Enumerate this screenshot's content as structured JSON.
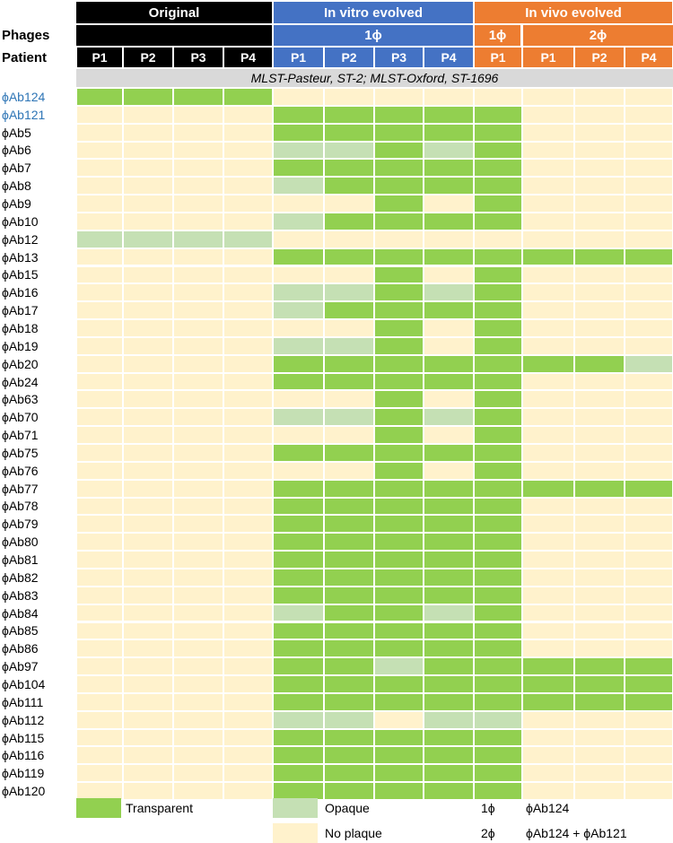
{
  "chart_data": {
    "type": "heatmap",
    "header": {
      "phages_label": "Phages",
      "patient_label": "Patient",
      "groups": [
        {
          "label": "Original",
          "color": "#000000"
        },
        {
          "label": "In vitro evolved",
          "color": "#4472c4",
          "subgroup": "1ϕ"
        },
        {
          "label": "In vivo evolved",
          "color": "#ed7d31",
          "subgroups": [
            "1ϕ",
            "2ϕ"
          ]
        }
      ],
      "columns": [
        {
          "group": "Original",
          "label": "P1"
        },
        {
          "group": "Original",
          "label": "P2"
        },
        {
          "group": "Original",
          "label": "P3"
        },
        {
          "group": "Original",
          "label": "P4"
        },
        {
          "group": "In vitro evolved",
          "sub": "1ϕ",
          "label": "P1"
        },
        {
          "group": "In vitro evolved",
          "sub": "1ϕ",
          "label": "P2"
        },
        {
          "group": "In vitro evolved",
          "sub": "1ϕ",
          "label": "P3"
        },
        {
          "group": "In vitro evolved",
          "sub": "1ϕ",
          "label": "P4"
        },
        {
          "group": "In vivo evolved",
          "sub": "1ϕ",
          "label": "P1"
        },
        {
          "group": "In vivo evolved",
          "sub": "2ϕ",
          "label": "P1"
        },
        {
          "group": "In vivo evolved",
          "sub": "2ϕ",
          "label": "P2"
        },
        {
          "group": "In vivo evolved",
          "sub": "2ϕ",
          "label": "P4"
        }
      ]
    },
    "strain_label": "MLST-Pasteur, ST-2;  MLST-Oxford, ST-1696",
    "categories": {
      "T": {
        "label": "Transparent",
        "color": "#92d050"
      },
      "O": {
        "label": "Opaque",
        "color": "#c5e0b4"
      },
      "N": {
        "label": "No plaque",
        "color": "#fff2cc"
      }
    },
    "rows": [
      {
        "phage": "ϕAb124",
        "highlight": "#2e75b6",
        "values": [
          "T",
          "T",
          "T",
          "T",
          "N",
          "N",
          "N",
          "N",
          "N",
          "N",
          "N",
          "N"
        ]
      },
      {
        "phage": "ϕAb121",
        "highlight": "#2e75b6",
        "values": [
          "N",
          "N",
          "N",
          "N",
          "T",
          "T",
          "T",
          "T",
          "T",
          "N",
          "N",
          "N"
        ]
      },
      {
        "phage": "ϕAb5",
        "values": [
          "N",
          "N",
          "N",
          "N",
          "T",
          "T",
          "T",
          "T",
          "T",
          "N",
          "N",
          "N"
        ]
      },
      {
        "phage": "ϕAb6",
        "values": [
          "N",
          "N",
          "N",
          "N",
          "O",
          "O",
          "T",
          "O",
          "T",
          "N",
          "N",
          "N"
        ]
      },
      {
        "phage": "ϕAb7",
        "values": [
          "N",
          "N",
          "N",
          "N",
          "T",
          "T",
          "T",
          "T",
          "T",
          "N",
          "N",
          "N"
        ]
      },
      {
        "phage": "ϕAb8",
        "values": [
          "N",
          "N",
          "N",
          "N",
          "O",
          "T",
          "T",
          "T",
          "T",
          "N",
          "N",
          "N"
        ]
      },
      {
        "phage": "ϕAb9",
        "values": [
          "N",
          "N",
          "N",
          "N",
          "N",
          "N",
          "T",
          "N",
          "T",
          "N",
          "N",
          "N"
        ]
      },
      {
        "phage": "ϕAb10",
        "values": [
          "N",
          "N",
          "N",
          "N",
          "O",
          "T",
          "T",
          "T",
          "T",
          "N",
          "N",
          "N"
        ]
      },
      {
        "phage": "ϕAb12",
        "values": [
          "O",
          "O",
          "O",
          "O",
          "N",
          "N",
          "N",
          "N",
          "N",
          "N",
          "N",
          "N"
        ]
      },
      {
        "phage": "ϕAb13",
        "values": [
          "N",
          "N",
          "N",
          "N",
          "T",
          "T",
          "T",
          "T",
          "T",
          "T",
          "T",
          "T"
        ]
      },
      {
        "phage": "ϕAb15",
        "values": [
          "N",
          "N",
          "N",
          "N",
          "N",
          "N",
          "T",
          "N",
          "T",
          "N",
          "N",
          "N"
        ]
      },
      {
        "phage": "ϕAb16",
        "values": [
          "N",
          "N",
          "N",
          "N",
          "O",
          "O",
          "T",
          "O",
          "T",
          "N",
          "N",
          "N"
        ]
      },
      {
        "phage": "ϕAb17",
        "values": [
          "N",
          "N",
          "N",
          "N",
          "O",
          "T",
          "T",
          "T",
          "T",
          "N",
          "N",
          "N"
        ]
      },
      {
        "phage": "ϕAb18",
        "values": [
          "N",
          "N",
          "N",
          "N",
          "N",
          "N",
          "T",
          "N",
          "T",
          "N",
          "N",
          "N"
        ]
      },
      {
        "phage": "ϕAb19",
        "values": [
          "N",
          "N",
          "N",
          "N",
          "O",
          "O",
          "T",
          "N",
          "T",
          "N",
          "N",
          "N"
        ]
      },
      {
        "phage": "ϕAb20",
        "values": [
          "N",
          "N",
          "N",
          "N",
          "T",
          "T",
          "T",
          "T",
          "T",
          "T",
          "T",
          "O"
        ]
      },
      {
        "phage": "ϕAb24",
        "values": [
          "N",
          "N",
          "N",
          "N",
          "T",
          "T",
          "T",
          "T",
          "T",
          "N",
          "N",
          "N"
        ]
      },
      {
        "phage": "ϕAb63",
        "values": [
          "N",
          "N",
          "N",
          "N",
          "N",
          "N",
          "T",
          "N",
          "T",
          "N",
          "N",
          "N"
        ]
      },
      {
        "phage": "ϕAb70",
        "values": [
          "N",
          "N",
          "N",
          "N",
          "O",
          "O",
          "T",
          "O",
          "T",
          "N",
          "N",
          "N"
        ]
      },
      {
        "phage": "ϕAb71",
        "values": [
          "N",
          "N",
          "N",
          "N",
          "N",
          "N",
          "T",
          "N",
          "T",
          "N",
          "N",
          "N"
        ]
      },
      {
        "phage": "ϕAb75",
        "values": [
          "N",
          "N",
          "N",
          "N",
          "T",
          "T",
          "T",
          "T",
          "T",
          "N",
          "N",
          "N"
        ]
      },
      {
        "phage": "ϕAb76",
        "values": [
          "N",
          "N",
          "N",
          "N",
          "N",
          "N",
          "T",
          "N",
          "T",
          "N",
          "N",
          "N"
        ]
      },
      {
        "phage": "ϕAb77",
        "values": [
          "N",
          "N",
          "N",
          "N",
          "T",
          "T",
          "T",
          "T",
          "T",
          "T",
          "T",
          "T"
        ]
      },
      {
        "phage": "ϕAb78",
        "values": [
          "N",
          "N",
          "N",
          "N",
          "T",
          "T",
          "T",
          "T",
          "T",
          "N",
          "N",
          "N"
        ]
      },
      {
        "phage": "ϕAb79",
        "values": [
          "N",
          "N",
          "N",
          "N",
          "T",
          "T",
          "T",
          "T",
          "T",
          "N",
          "N",
          "N"
        ]
      },
      {
        "phage": "ϕAb80",
        "values": [
          "N",
          "N",
          "N",
          "N",
          "T",
          "T",
          "T",
          "T",
          "T",
          "N",
          "N",
          "N"
        ]
      },
      {
        "phage": "ϕAb81",
        "values": [
          "N",
          "N",
          "N",
          "N",
          "T",
          "T",
          "T",
          "T",
          "T",
          "N",
          "N",
          "N"
        ]
      },
      {
        "phage": "ϕAb82",
        "values": [
          "N",
          "N",
          "N",
          "N",
          "T",
          "T",
          "T",
          "T",
          "T",
          "N",
          "N",
          "N"
        ]
      },
      {
        "phage": "ϕAb83",
        "values": [
          "N",
          "N",
          "N",
          "N",
          "T",
          "T",
          "T",
          "T",
          "T",
          "N",
          "N",
          "N"
        ]
      },
      {
        "phage": "ϕAb84",
        "values": [
          "N",
          "N",
          "N",
          "N",
          "O",
          "T",
          "T",
          "O",
          "T",
          "N",
          "N",
          "N"
        ]
      },
      {
        "phage": "ϕAb85",
        "values": [
          "N",
          "N",
          "N",
          "N",
          "T",
          "T",
          "T",
          "T",
          "T",
          "N",
          "N",
          "N"
        ]
      },
      {
        "phage": "ϕAb86",
        "values": [
          "N",
          "N",
          "N",
          "N",
          "T",
          "T",
          "T",
          "T",
          "T",
          "N",
          "N",
          "N"
        ]
      },
      {
        "phage": "ϕAb97",
        "values": [
          "N",
          "N",
          "N",
          "N",
          "T",
          "T",
          "O",
          "T",
          "T",
          "T",
          "T",
          "T"
        ]
      },
      {
        "phage": "ϕAb104",
        "values": [
          "N",
          "N",
          "N",
          "N",
          "T",
          "T",
          "T",
          "T",
          "T",
          "T",
          "T",
          "T"
        ]
      },
      {
        "phage": "ϕAb111",
        "values": [
          "N",
          "N",
          "N",
          "N",
          "T",
          "T",
          "T",
          "T",
          "T",
          "T",
          "T",
          "T"
        ]
      },
      {
        "phage": "ϕAb112",
        "values": [
          "N",
          "N",
          "N",
          "N",
          "O",
          "O",
          "N",
          "O",
          "O",
          "N",
          "N",
          "N"
        ]
      },
      {
        "phage": "ϕAb115",
        "values": [
          "N",
          "N",
          "N",
          "N",
          "T",
          "T",
          "T",
          "T",
          "T",
          "N",
          "N",
          "N"
        ]
      },
      {
        "phage": "ϕAb116",
        "values": [
          "N",
          "N",
          "N",
          "N",
          "T",
          "T",
          "T",
          "T",
          "T",
          "N",
          "N",
          "N"
        ]
      },
      {
        "phage": "ϕAb119",
        "values": [
          "N",
          "N",
          "N",
          "N",
          "T",
          "T",
          "T",
          "T",
          "T",
          "N",
          "N",
          "N"
        ]
      },
      {
        "phage": "ϕAb120",
        "values": [
          "N",
          "N",
          "N",
          "N",
          "T",
          "T",
          "T",
          "T",
          "T",
          "N",
          "N",
          "N"
        ]
      }
    ],
    "legend": {
      "transparent": "Transparent",
      "opaque": "Opaque",
      "no_plaque": "No plaque",
      "key_1": "1ϕ",
      "key_1_desc": "ϕAb124",
      "key_2": "2ϕ",
      "key_2_desc": "ϕAb124 + ϕAb121"
    }
  }
}
